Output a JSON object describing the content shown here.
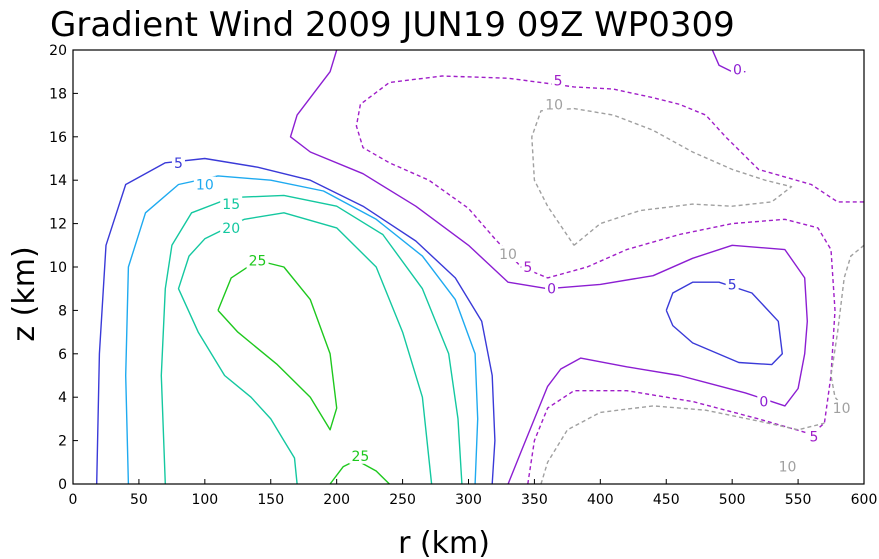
{
  "chart_data": {
    "type": "contour",
    "title": "Gradient Wind 2009 JUN19 09Z  WP0309",
    "xlabel": "r (km)",
    "ylabel": "z (km)",
    "xlim": [
      0,
      600
    ],
    "ylim": [
      0,
      20
    ],
    "x_ticks": [
      0,
      50,
      100,
      150,
      200,
      250,
      300,
      350,
      400,
      450,
      500,
      550,
      600
    ],
    "y_ticks": [
      0,
      2,
      4,
      6,
      8,
      10,
      12,
      14,
      16,
      18,
      20
    ],
    "grid": false,
    "legend": "none",
    "colors": {
      "25": "#1ec81e",
      "20": "#14c8a0",
      "15": "#14c8a0",
      "10": "#1eaaf0",
      "5": "#3a3ad8",
      "0": "#8c1ed2",
      "-5": "#a01ec8",
      "-10": "#a0a0a0"
    },
    "contours": [
      {
        "level": 25,
        "label": "25",
        "dashed": false,
        "points": [
          [
            110,
            8
          ],
          [
            120,
            9.5
          ],
          [
            140,
            10.3
          ],
          [
            160,
            10
          ],
          [
            180,
            8.5
          ],
          [
            195,
            6
          ],
          [
            200,
            3.5
          ],
          [
            195,
            2.5
          ],
          [
            180,
            4
          ],
          [
            155,
            5.5
          ],
          [
            125,
            7
          ],
          [
            110,
            8
          ]
        ]
      },
      {
        "level": 25,
        "label": "25",
        "dashed": false,
        "points": [
          [
            195,
            0
          ],
          [
            205,
            0.8
          ],
          [
            215,
            1.1
          ],
          [
            230,
            0.6
          ],
          [
            240,
            0
          ]
        ]
      },
      {
        "level": 20,
        "label": "20",
        "dashed": false,
        "points": [
          [
            170,
            0
          ],
          [
            168,
            1.2
          ],
          [
            160,
            2
          ],
          [
            150,
            3
          ],
          [
            135,
            4
          ],
          [
            115,
            5
          ],
          [
            95,
            7
          ],
          [
            80,
            9
          ],
          [
            88,
            10.5
          ],
          [
            100,
            11.3
          ],
          [
            130,
            12.2
          ],
          [
            160,
            12.5
          ],
          [
            200,
            11.8
          ],
          [
            230,
            10
          ],
          [
            250,
            7
          ],
          [
            265,
            4
          ],
          [
            272,
            0
          ]
        ]
      },
      {
        "level": 15,
        "label": "15",
        "dashed": false,
        "points": [
          [
            70,
            0
          ],
          [
            67,
            5
          ],
          [
            70,
            9
          ],
          [
            75,
            11
          ],
          [
            90,
            12.5
          ],
          [
            120,
            13.2
          ],
          [
            160,
            13.3
          ],
          [
            200,
            12.8
          ],
          [
            235,
            11.5
          ],
          [
            265,
            9
          ],
          [
            285,
            6
          ],
          [
            292,
            3
          ],
          [
            295,
            0
          ]
        ]
      },
      {
        "level": 10,
        "label": "10",
        "dashed": false,
        "points": [
          [
            42,
            0
          ],
          [
            40,
            5
          ],
          [
            42,
            10
          ],
          [
            55,
            12.5
          ],
          [
            80,
            13.8
          ],
          [
            110,
            14.2
          ],
          [
            150,
            14
          ],
          [
            190,
            13.5
          ],
          [
            230,
            12.2
          ],
          [
            265,
            10.5
          ],
          [
            290,
            8.5
          ],
          [
            305,
            6
          ],
          [
            307,
            3
          ],
          [
            305,
            0
          ]
        ]
      },
      {
        "level": 5,
        "label": "5",
        "dashed": false,
        "points": [
          [
            18,
            0
          ],
          [
            20,
            6
          ],
          [
            25,
            11
          ],
          [
            40,
            13.8
          ],
          [
            70,
            14.8
          ],
          [
            100,
            15
          ],
          [
            140,
            14.6
          ],
          [
            180,
            14
          ],
          [
            220,
            12.8
          ],
          [
            260,
            11.2
          ],
          [
            290,
            9.5
          ],
          [
            310,
            7.5
          ],
          [
            318,
            5
          ],
          [
            320,
            2
          ],
          [
            318,
            0
          ]
        ]
      },
      {
        "level": 5,
        "label": "5",
        "dashed": false,
        "points": [
          [
            450,
            8
          ],
          [
            455,
            8.8
          ],
          [
            470,
            9.3
          ],
          [
            490,
            9.3
          ],
          [
            515,
            8.8
          ],
          [
            535,
            7.5
          ],
          [
            538,
            6
          ],
          [
            530,
            5.5
          ],
          [
            505,
            5.6
          ],
          [
            470,
            6.5
          ],
          [
            455,
            7.3
          ],
          [
            450,
            8
          ]
        ]
      },
      {
        "level": 0,
        "label": "0",
        "dashed": false,
        "points": [
          [
            330,
            0
          ],
          [
            340,
            1.5
          ],
          [
            350,
            3
          ],
          [
            360,
            4.5
          ],
          [
            370,
            5.3
          ],
          [
            385,
            5.8
          ],
          [
            420,
            5.4
          ],
          [
            460,
            5
          ],
          [
            510,
            4.2
          ],
          [
            540,
            3.6
          ],
          [
            550,
            4.4
          ],
          [
            555,
            6
          ],
          [
            557,
            7.5
          ],
          [
            555,
            9.5
          ],
          [
            540,
            10.8
          ],
          [
            500,
            11
          ],
          [
            470,
            10.4
          ],
          [
            440,
            9.6
          ],
          [
            400,
            9.2
          ],
          [
            360,
            9
          ],
          [
            330,
            9.3
          ],
          [
            300,
            11
          ],
          [
            260,
            12.8
          ],
          [
            220,
            14.3
          ],
          [
            180,
            15.3
          ],
          [
            165,
            16
          ],
          [
            170,
            17
          ],
          [
            180,
            17.8
          ],
          [
            195,
            19
          ],
          [
            200,
            20
          ]
        ]
      },
      {
        "level": 0,
        "label": "0",
        "dashed": false,
        "points": [
          [
            485,
            20
          ],
          [
            490,
            19.3
          ],
          [
            500,
            19
          ],
          [
            510,
            19
          ]
        ]
      },
      {
        "level": -5,
        "label": "5",
        "dashed": true,
        "points": [
          [
            345,
            0
          ],
          [
            350,
            2
          ],
          [
            360,
            3.5
          ],
          [
            380,
            4.3
          ],
          [
            420,
            4.3
          ],
          [
            470,
            3.8
          ],
          [
            520,
            3
          ],
          [
            560,
            2.3
          ],
          [
            570,
            2.8
          ],
          [
            575,
            5
          ],
          [
            578,
            8
          ],
          [
            575,
            10.8
          ],
          [
            565,
            11.8
          ],
          [
            540,
            12.2
          ],
          [
            500,
            12
          ],
          [
            460,
            11.5
          ],
          [
            420,
            10.8
          ],
          [
            390,
            10
          ],
          [
            360,
            9.5
          ],
          [
            340,
            10
          ],
          [
            320,
            11.3
          ],
          [
            300,
            12.7
          ],
          [
            270,
            14
          ],
          [
            240,
            14.8
          ],
          [
            220,
            15.5
          ],
          [
            215,
            16.5
          ],
          [
            218,
            17.5
          ],
          [
            240,
            18.5
          ],
          [
            280,
            18.8
          ],
          [
            330,
            18.7
          ],
          [
            380,
            18.3
          ],
          [
            410,
            18.2
          ],
          [
            440,
            17.8
          ],
          [
            460,
            17.5
          ],
          [
            480,
            17
          ],
          [
            495,
            16
          ],
          [
            520,
            14.5
          ],
          [
            560,
            13.8
          ],
          [
            575,
            13.2
          ],
          [
            580,
            13
          ],
          [
            600,
            13
          ]
        ]
      },
      {
        "level": -10,
        "label": "10",
        "dashed": true,
        "points": [
          [
            355,
            0
          ],
          [
            360,
            1
          ],
          [
            375,
            2.5
          ],
          [
            400,
            3.3
          ],
          [
            440,
            3.6
          ],
          [
            480,
            3.4
          ],
          [
            520,
            2.9
          ],
          [
            550,
            2.5
          ],
          [
            570,
            2.8
          ]
        ]
      },
      {
        "level": -10,
        "label": "10",
        "dashed": true,
        "points": [
          [
            380,
            11
          ],
          [
            400,
            12
          ],
          [
            430,
            12.6
          ],
          [
            470,
            12.9
          ],
          [
            500,
            12.8
          ],
          [
            530,
            13
          ],
          [
            545,
            13.7
          ],
          [
            525,
            14
          ],
          [
            500,
            14.5
          ],
          [
            470,
            15.3
          ],
          [
            440,
            16.3
          ],
          [
            410,
            17
          ],
          [
            380,
            17.3
          ],
          [
            355,
            17.2
          ],
          [
            348,
            16
          ],
          [
            350,
            14
          ],
          [
            360,
            12.8
          ],
          [
            380,
            11
          ]
        ]
      },
      {
        "level": -10,
        "label": "10",
        "dashed": true,
        "points": [
          [
            600,
            11
          ],
          [
            590,
            10.5
          ],
          [
            585,
            9.5
          ],
          [
            580,
            7
          ],
          [
            575,
            5
          ],
          [
            578,
            4
          ],
          [
            585,
            3.5
          ]
        ]
      }
    ],
    "label_positions": [
      {
        "label": "25",
        "x": 140,
        "y": 10.3
      },
      {
        "label": "25",
        "x": 218,
        "y": 1.3
      },
      {
        "label": "20",
        "x": 120,
        "y": 11.8
      },
      {
        "label": "15",
        "x": 120,
        "y": 12.9
      },
      {
        "label": "10",
        "x": 100,
        "y": 13.8
      },
      {
        "label": "5",
        "x": 80,
        "y": 14.8
      },
      {
        "label": "5",
        "x": 500,
        "y": 9.2
      },
      {
        "label": "0",
        "x": 363,
        "y": 9.0
      },
      {
        "label": "0",
        "x": 524,
        "y": 3.8
      },
      {
        "label": "0",
        "x": 504,
        "y": 19.1
      },
      {
        "label": "5",
        "x": 345,
        "y": 10.0
      },
      {
        "label": "5",
        "x": 368,
        "y": 18.6
      },
      {
        "label": "5",
        "x": 562,
        "y": 2.2
      },
      {
        "label": "10",
        "x": 330,
        "y": 10.6
      },
      {
        "label": "10",
        "x": 365,
        "y": 17.5
      },
      {
        "label": "10",
        "x": 542,
        "y": 0.8
      },
      {
        "label": "10",
        "x": 583,
        "y": 3.5
      }
    ]
  }
}
